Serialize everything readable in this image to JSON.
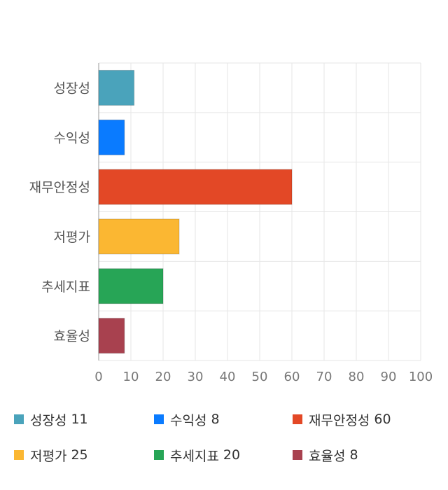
{
  "chart_data": {
    "type": "bar",
    "orientation": "horizontal",
    "categories": [
      "성장성",
      "수익성",
      "재무안정성",
      "저평가",
      "추세지표",
      "효율성"
    ],
    "values": [
      11,
      8,
      60,
      25,
      20,
      8
    ],
    "colors": [
      "#4aa3bb",
      "#0a7bff",
      "#e34826",
      "#fbb732",
      "#27a556",
      "#a8414f"
    ],
    "xlim": [
      0,
      100
    ],
    "xticks": [
      "0",
      "10",
      "20",
      "30",
      "40",
      "50",
      "60",
      "70",
      "80",
      "90",
      "100"
    ],
    "grid": true,
    "legend_position": "bottom"
  },
  "legend": [
    {
      "label": "성장성",
      "value": "11"
    },
    {
      "label": "수익성",
      "value": "8"
    },
    {
      "label": "재무안정성",
      "value": "60"
    },
    {
      "label": "저평가",
      "value": "25"
    },
    {
      "label": "추세지표",
      "value": "20"
    },
    {
      "label": "효율성",
      "value": "8"
    }
  ]
}
